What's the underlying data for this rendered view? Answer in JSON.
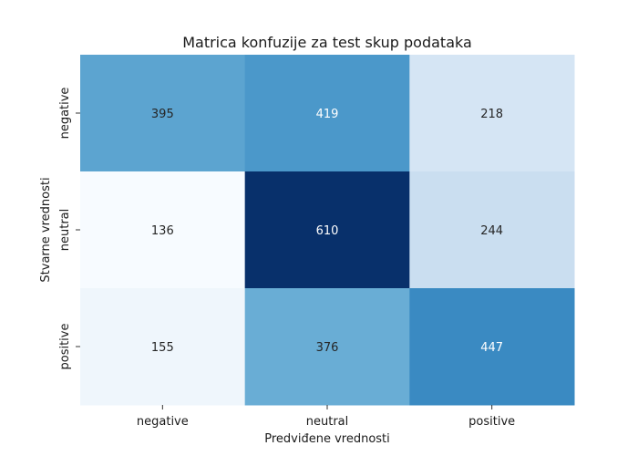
{
  "chart_data": {
    "type": "heatmap",
    "title": "Matrica konfuzije za test skup podataka",
    "xlabel": "Predviđene vrednosti",
    "ylabel": "Stvarne vrednosti",
    "x_categories": [
      "negative",
      "neutral",
      "positive"
    ],
    "y_categories": [
      "negative",
      "neutral",
      "positive"
    ],
    "values": [
      [
        395,
        419,
        218
      ],
      [
        136,
        610,
        244
      ],
      [
        155,
        376,
        447
      ]
    ],
    "colormap": "Blues",
    "colorbar": false,
    "grid": false,
    "annotated": true
  }
}
